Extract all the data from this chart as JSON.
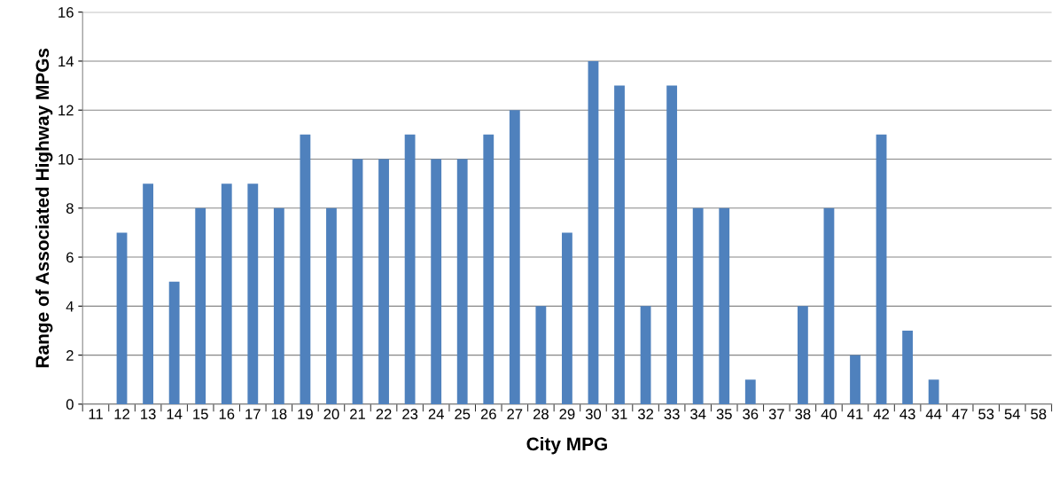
{
  "chart_data": {
    "type": "bar",
    "xlabel": "City MPG",
    "ylabel": "Range of Associated Highway MPGs",
    "categories": [
      "11",
      "12",
      "13",
      "14",
      "15",
      "16",
      "17",
      "18",
      "19",
      "20",
      "21",
      "22",
      "23",
      "24",
      "25",
      "26",
      "27",
      "28",
      "29",
      "30",
      "31",
      "32",
      "33",
      "34",
      "35",
      "36",
      "37",
      "38",
      "40",
      "41",
      "42",
      "43",
      "44",
      "47",
      "53",
      "54",
      "58"
    ],
    "values": [
      0,
      7,
      9,
      5,
      8,
      9,
      9,
      8,
      11,
      8,
      10,
      10,
      11,
      10,
      10,
      11,
      12,
      4,
      7,
      14,
      13,
      4,
      13,
      8,
      8,
      1,
      0,
      4,
      8,
      2,
      11,
      3,
      1,
      0,
      0,
      0,
      0
    ],
    "color": "#4f81bd",
    "ylim": [
      0,
      16
    ],
    "yticks": [
      0,
      2,
      4,
      6,
      8,
      10,
      12,
      14,
      16
    ],
    "grid": "y",
    "legend": false
  }
}
